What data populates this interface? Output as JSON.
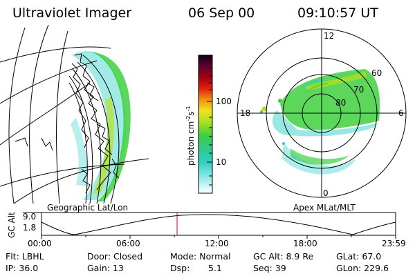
{
  "header": {
    "title": "Ultraviolet Imager",
    "date": "06 Sep 00",
    "time": "09:10:57 UT"
  },
  "colorbar": {
    "unit_label": "photon cm",
    "unit_exp1": "-2",
    "unit_s": "s",
    "unit_exp2": "-1",
    "ticks": [
      "100",
      "10"
    ]
  },
  "polar_plot": {
    "mlt_labels": [
      "12",
      "18",
      "6",
      "0"
    ],
    "lat_labels": [
      "60",
      "70",
      "80"
    ]
  },
  "panel_labels": {
    "geographic": "Geographic Lat/Lon",
    "apex": "Apex MLat/MLT"
  },
  "altitude_plot": {
    "ylabel": "GC Alt",
    "y_ticks": [
      "9.0",
      "1.8"
    ],
    "x_ticks": [
      "00:00",
      "06:00",
      "12:00",
      "18:00",
      "23:59"
    ],
    "marker_color": "#e00000"
  },
  "info": {
    "row1": {
      "filter": "Flt: LBHL",
      "door": "Door: Closed",
      "mode": "Mode: Normal",
      "gc_alt": "GC Alt: 8.9 Re",
      "glat": "GLat: 67.0"
    },
    "row2": {
      "ip": "IP: 36.0",
      "gain": "Gain: 13",
      "dsp_label": "Dsp:",
      "dsp_value": "5.1",
      "seq": "Seq: 39",
      "glon": "GLon: 229.6"
    }
  },
  "colors": {
    "aurora_green": "#40d040",
    "aurora_cyan": "#30d0c8",
    "aurora_yellow": "#b8e020"
  }
}
